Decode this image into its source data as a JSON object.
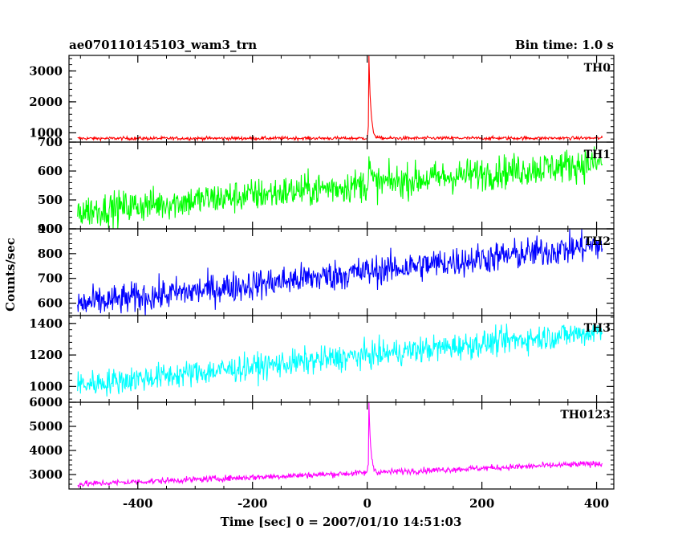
{
  "header": {
    "left": "ae070110145103_wam3_trn",
    "right": "Bin time: 1.0 s"
  },
  "chart_data": {
    "type": "line",
    "xlabel": "Time [sec] 0 = 2007/01/10 14:51:03",
    "ylabel": "Counts/sec",
    "xlim": [
      -520,
      430
    ],
    "x_ticks": [
      -400,
      -200,
      0,
      200,
      400
    ],
    "x_data_range": [
      -505,
      410
    ],
    "panels": [
      {
        "name": "TH0",
        "color": "#ff0000",
        "ylim": [
          700,
          3500
        ],
        "y_ticks": [
          1000,
          2000,
          3000
        ],
        "trend": [
          [
            -505,
            820
          ],
          [
            410,
            830
          ]
        ],
        "noise": 50,
        "peak": {
          "x": 3,
          "value": 3500
        }
      },
      {
        "name": "TH1",
        "color": "#00ff00",
        "ylim": [
          400,
          700
        ],
        "y_ticks": [
          400,
          500,
          600,
          700
        ],
        "trend": [
          [
            -505,
            460
          ],
          [
            410,
            630
          ]
        ],
        "noise": 55,
        "peak": {
          "x": 3,
          "value": 640
        }
      },
      {
        "name": "TH2",
        "color": "#0000ff",
        "ylim": [
          550,
          900
        ],
        "y_ticks": [
          600,
          700,
          800,
          900
        ],
        "trend": [
          [
            -505,
            595
          ],
          [
            410,
            835
          ]
        ],
        "noise": 60,
        "peak": null
      },
      {
        "name": "TH3",
        "color": "#00ffff",
        "ylim": [
          900,
          1450
        ],
        "y_ticks": [
          1000,
          1200,
          1400
        ],
        "trend": [
          [
            -505,
            1010
          ],
          [
            410,
            1350
          ]
        ],
        "noise": 80,
        "peak": null
      },
      {
        "name": "TH0123",
        "color": "#ff00ff",
        "ylim": [
          2400,
          6000
        ],
        "y_ticks": [
          3000,
          4000,
          5000,
          6000
        ],
        "trend": [
          [
            -505,
            2600
          ],
          [
            410,
            3460
          ]
        ],
        "noise": 120,
        "peak": {
          "x": 3,
          "value": 6000
        }
      }
    ]
  }
}
